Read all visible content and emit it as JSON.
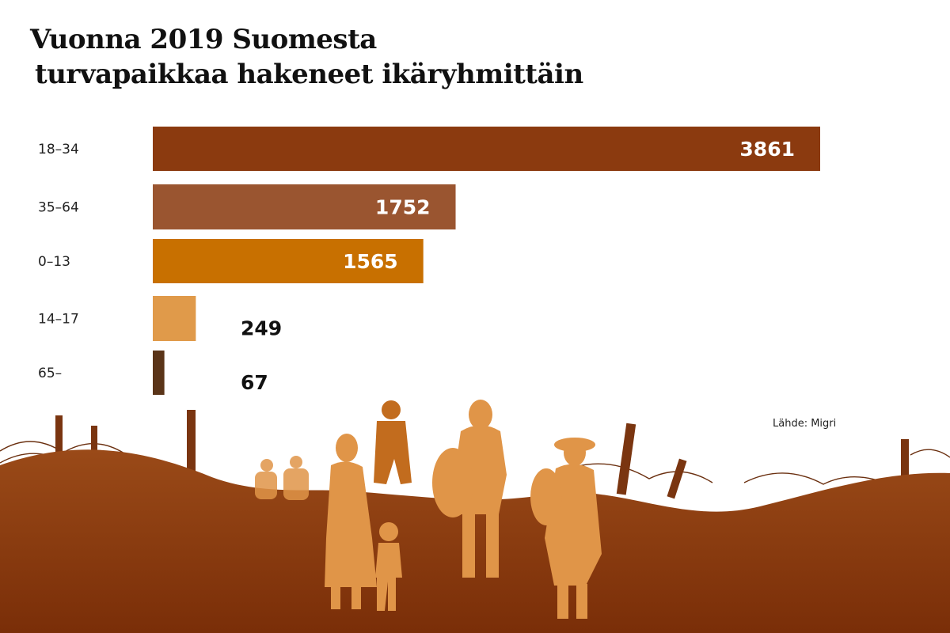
{
  "title": {
    "line1": "Vuonna 2019 Suomesta",
    "line2": "turvapaikkaa hakeneet ikäryhmittäin"
  },
  "source": "Lähde: Migri",
  "chart_data": {
    "type": "bar",
    "orientation": "horizontal",
    "categories": [
      "18–34",
      "35–64",
      "0–13",
      "14–17",
      "65–"
    ],
    "values": [
      3861,
      1752,
      1565,
      249,
      67
    ],
    "colors": [
      "#8b3a0f",
      "#9a5530",
      "#c87000",
      "#e09a4a",
      "#5a3418"
    ],
    "title": "Vuonna 2019 Suomesta turvapaikkaa hakeneet ikäryhmittäin",
    "xlabel": "",
    "ylabel": "",
    "grid": false,
    "legend": "none"
  },
  "background": {
    "ground_color": "#8b3e12",
    "figure_color": "#e09548"
  }
}
